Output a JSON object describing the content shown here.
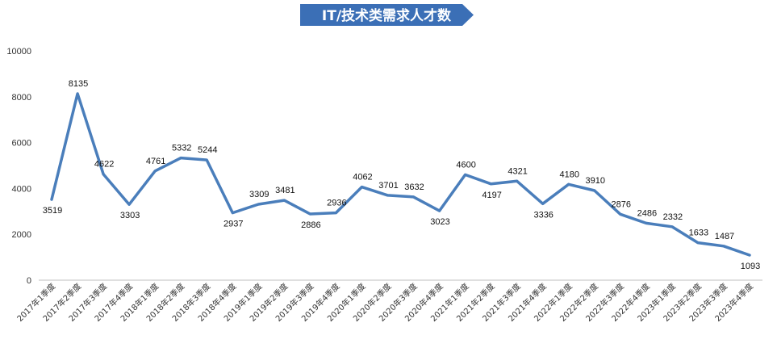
{
  "colors": {
    "line": "#4a7ebb",
    "banner": "#3b6fb6",
    "axis": "#bfbfbf",
    "text": "#333333"
  },
  "chart_data": {
    "type": "line",
    "title": "IT/技术类需求人才数",
    "xlabel": "",
    "ylabel": "",
    "ylim": [
      0,
      10000
    ],
    "yticks": [
      "0",
      "2000",
      "4000",
      "6000",
      "8000",
      "10000"
    ],
    "grid": false,
    "legend": "none",
    "categories": [
      "2017年1季度",
      "2017年2季度",
      "2017年3季度",
      "2017年4季度",
      "2018年1季度",
      "2018年2季度",
      "2018年3季度",
      "2018年4季度",
      "2019年1季度",
      "2019年2季度",
      "2019年3季度",
      "2019年4季度",
      "2020年1季度",
      "2020年2季度",
      "2020年3季度",
      "2020年4季度",
      "2021年1季度",
      "2021年2季度",
      "2021年3季度",
      "2021年4季度",
      "2022年1季度",
      "2022年2季度",
      "2022年3季度",
      "2022年4季度",
      "2023年1季度",
      "2023年2季度",
      "2023年3季度",
      "2023年4季度"
    ],
    "series": [
      {
        "values": [
          3519,
          8135,
          4622,
          3303,
          4761,
          5332,
          5244,
          2937,
          3309,
          3481,
          2886,
          2936,
          4062,
          3701,
          3632,
          3023,
          4600,
          4197,
          4321,
          3336,
          4180,
          3910,
          2876,
          2486,
          2332,
          1633,
          1487,
          1093
        ],
        "labels": [
          "3519",
          "8135",
          "4622",
          "3303",
          "4761",
          "5332",
          "5244",
          "2937",
          "3309",
          "3481",
          "2886",
          "2936",
          "4062",
          "3701",
          "3632",
          "3023",
          "4600",
          "4197",
          "4321",
          "3336",
          "4180",
          "3910",
          "2876",
          "2486",
          "2332",
          "1633",
          "1487",
          "1093"
        ]
      }
    ]
  }
}
